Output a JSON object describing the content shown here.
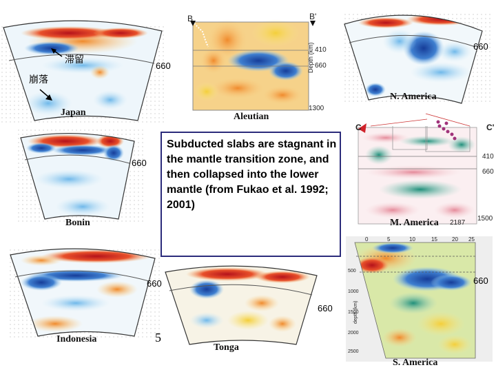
{
  "caption": "Subducted slabs are stagnant in the mantle transition zone, and then collapsed into the lower mantle (from Fukao et al. 1992; 2001)",
  "labels": {
    "stagnant": "滞留",
    "collapse": "崩落"
  },
  "panels": {
    "japan": {
      "name": "Japan",
      "depth660": "660"
    },
    "aleutian": {
      "name": "Aleutian",
      "left": "B",
      "right": "B'",
      "d410": "410",
      "d660": "660",
      "d1300": "1300",
      "axis": "Depth (km)"
    },
    "north_america": {
      "name": "N. America",
      "depth660": "660"
    },
    "bonin": {
      "name": "Bonin",
      "depth660": "660"
    },
    "middle_america": {
      "name": "M. America",
      "left": "C",
      "right": "C'",
      "d410": "410",
      "d660": "660",
      "d1500": "1500",
      "d2187": "2187"
    },
    "indonesia": {
      "name": "Indonesia",
      "depth660": "660",
      "page": "5"
    },
    "tonga": {
      "name": "Tonga",
      "depth660": "660"
    },
    "south_america": {
      "name": "S. America",
      "depth660": "660",
      "top_ticks": [
        "0",
        "5",
        "10",
        "15",
        "20",
        "25"
      ],
      "left_ticks": [
        "500",
        "1000",
        "1500",
        "2000",
        "2500"
      ],
      "axis": "depth (km)"
    }
  },
  "colors": {
    "red": "#c0272d",
    "blue": "#1f4fa8",
    "frame": "#2a2a7a"
  }
}
